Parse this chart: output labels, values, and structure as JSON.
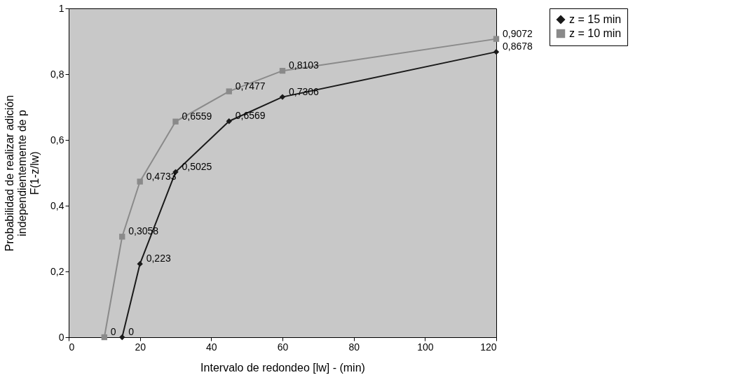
{
  "chart_data": {
    "type": "line",
    "xlabel": "Intervalo de redondeo [lw] - (min)",
    "ylabel": "Probabilidad de realizar adición\nindependientemente de p\nF(1-z/lw)",
    "xlim": [
      0,
      120
    ],
    "xticks": [
      0,
      20,
      40,
      60,
      80,
      100,
      120
    ],
    "ylim": [
      0,
      1
    ],
    "yticks": [
      0,
      {
        "value": 0.2,
        "label": "0,2"
      },
      {
        "value": 0.4,
        "label": "0,4"
      },
      {
        "value": 0.6,
        "label": "0,6"
      },
      {
        "value": 0.8,
        "label": "0,8"
      },
      1
    ],
    "grid": false,
    "legend": "right",
    "series": [
      {
        "name": "z = 15 min",
        "color": "#1a1a1a",
        "marker": "diamond",
        "x": [
          15,
          20,
          30,
          45,
          60,
          120
        ],
        "values": [
          0,
          0.223,
          0.5025,
          0.6569,
          0.7306,
          0.8678
        ],
        "value_labels": [
          "0",
          "0,223",
          "0,5025",
          "0,6569",
          "0,7306",
          "0,8678"
        ]
      },
      {
        "name": "z = 10 min",
        "color": "#8a8a8a",
        "marker": "square",
        "x": [
          10,
          15,
          20,
          30,
          45,
          60,
          120
        ],
        "values": [
          0,
          0.3058,
          0.4733,
          0.6559,
          0.7477,
          0.8103,
          0.9072
        ],
        "value_labels": [
          "0",
          "0,3058",
          "0,4733",
          "0,6559",
          "0,7477",
          "0,8103",
          "0,9072"
        ]
      }
    ]
  }
}
